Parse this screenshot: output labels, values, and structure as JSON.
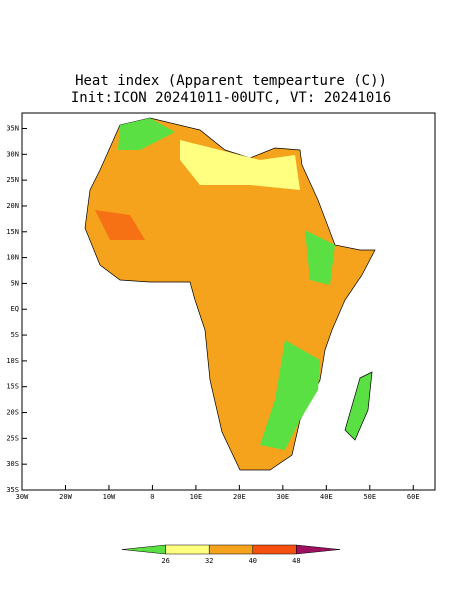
{
  "header": {
    "title": "Heat index (Apparent tempearture (C))",
    "subtitle": "Init:ICON 20241011-00UTC, VT: 20241016"
  },
  "map": {
    "xlim": [
      -30,
      65
    ],
    "ylim": [
      -35,
      38
    ],
    "xticks": [
      {
        "value": -30,
        "label": "30W"
      },
      {
        "value": -20,
        "label": "20W"
      },
      {
        "value": -10,
        "label": "10W"
      },
      {
        "value": 0,
        "label": "0"
      },
      {
        "value": 10,
        "label": "10E"
      },
      {
        "value": 20,
        "label": "20E"
      },
      {
        "value": 30,
        "label": "30E"
      },
      {
        "value": 40,
        "label": "40E"
      },
      {
        "value": 50,
        "label": "50E"
      },
      {
        "value": 60,
        "label": "60E"
      }
    ],
    "yticks": [
      {
        "value": 35,
        "label": "35N"
      },
      {
        "value": 30,
        "label": "30N"
      },
      {
        "value": 25,
        "label": "25N"
      },
      {
        "value": 20,
        "label": "20N"
      },
      {
        "value": 15,
        "label": "15N"
      },
      {
        "value": 10,
        "label": "10N"
      },
      {
        "value": 5,
        "label": "5N"
      },
      {
        "value": 0,
        "label": "EQ"
      },
      {
        "value": -5,
        "label": "5S"
      },
      {
        "value": -10,
        "label": "10S"
      },
      {
        "value": -15,
        "label": "15S"
      },
      {
        "value": -20,
        "label": "20S"
      },
      {
        "value": -25,
        "label": "25S"
      },
      {
        "value": -30,
        "label": "30S"
      },
      {
        "value": -35,
        "label": "35S"
      }
    ]
  },
  "legend": {
    "levels": [
      26,
      32,
      40,
      48
    ],
    "colors": [
      "#5be043",
      "#ffff80",
      "#f5a21c",
      "#f5500f",
      "#a01060"
    ]
  }
}
